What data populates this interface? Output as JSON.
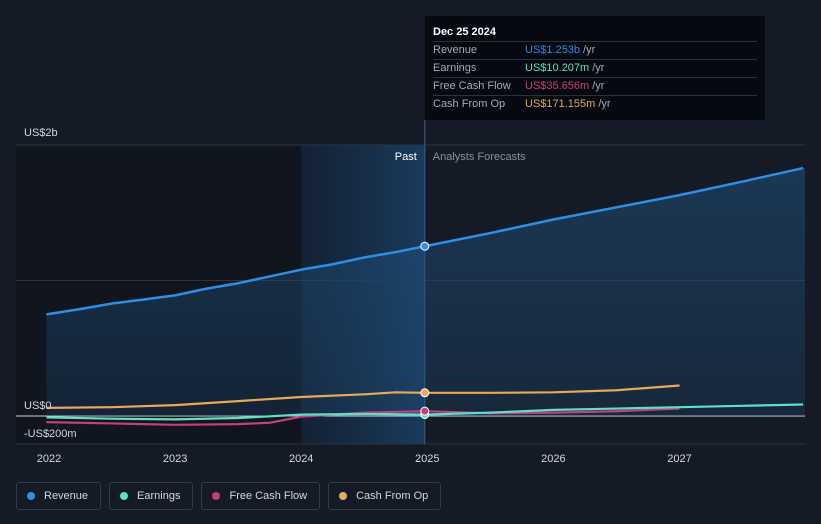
{
  "chart_data": {
    "type": "line",
    "y_axis_labels": [
      "US$2b",
      "US$0",
      "-US$200m"
    ],
    "x_tick_labels": [
      "2022",
      "2023",
      "2024",
      "2025",
      "2026",
      "2027"
    ],
    "ylim": [
      -200,
      2000
    ],
    "divider_label_past": "Past",
    "divider_label_forecast": "Analysts Forecasts",
    "divider_x": 2024.98,
    "highlight_start": 2024.0,
    "series": [
      {
        "name": "Revenue",
        "color": "#2d8fe6",
        "points": [
          [
            2021.98,
            750
          ],
          [
            2022.25,
            790
          ],
          [
            2022.5,
            830
          ],
          [
            2022.75,
            860
          ],
          [
            2023.0,
            890
          ],
          [
            2023.25,
            940
          ],
          [
            2023.5,
            980
          ],
          [
            2023.75,
            1030
          ],
          [
            2024.0,
            1080
          ],
          [
            2024.25,
            1120
          ],
          [
            2024.5,
            1170
          ],
          [
            2024.75,
            1210
          ],
          [
            2024.98,
            1253
          ]
        ],
        "forecast": [
          [
            2024.98,
            1253
          ],
          [
            2025.5,
            1350
          ],
          [
            2026.0,
            1450
          ],
          [
            2026.5,
            1540
          ],
          [
            2027.0,
            1630
          ],
          [
            2027.5,
            1730
          ],
          [
            2027.98,
            1830
          ]
        ]
      },
      {
        "name": "Earnings",
        "color": "#5ee0c8",
        "points": [
          [
            2021.98,
            -10
          ],
          [
            2022.5,
            -20
          ],
          [
            2023.0,
            -25
          ],
          [
            2023.5,
            -15
          ],
          [
            2024.0,
            10
          ],
          [
            2024.5,
            15
          ],
          [
            2024.98,
            10.2
          ]
        ],
        "forecast": [
          [
            2024.98,
            10.2
          ],
          [
            2025.5,
            25
          ],
          [
            2026.0,
            45
          ],
          [
            2026.5,
            55
          ],
          [
            2027.0,
            65
          ],
          [
            2027.5,
            75
          ],
          [
            2027.98,
            85
          ]
        ]
      },
      {
        "name": "Free Cash Flow",
        "color": "#c4407a",
        "points": [
          [
            2021.98,
            -45
          ],
          [
            2022.5,
            -55
          ],
          [
            2023.0,
            -65
          ],
          [
            2023.5,
            -60
          ],
          [
            2023.75,
            -50
          ],
          [
            2024.0,
            -5
          ],
          [
            2024.5,
            25
          ],
          [
            2024.98,
            35.7
          ]
        ],
        "forecast": [
          [
            2024.98,
            35.7
          ],
          [
            2025.5,
            20
          ],
          [
            2026.0,
            25
          ],
          [
            2026.5,
            35
          ],
          [
            2027.0,
            55
          ]
        ]
      },
      {
        "name": "Cash From Op",
        "color": "#e8a95a",
        "points": [
          [
            2021.98,
            60
          ],
          [
            2022.5,
            65
          ],
          [
            2023.0,
            80
          ],
          [
            2023.5,
            110
          ],
          [
            2024.0,
            140
          ],
          [
            2024.5,
            160
          ],
          [
            2024.75,
            175
          ],
          [
            2024.98,
            171.2
          ]
        ],
        "forecast": [
          [
            2024.98,
            171.2
          ],
          [
            2025.5,
            171
          ],
          [
            2026.0,
            175
          ],
          [
            2026.5,
            190
          ],
          [
            2027.0,
            225
          ]
        ]
      }
    ]
  },
  "tooltip": {
    "date": "Dec 25 2024",
    "rows": [
      {
        "label": "Revenue",
        "value": "US$1.253b",
        "unit": "/yr",
        "color": "#2d8fe6"
      },
      {
        "label": "Earnings",
        "value": "US$10.207m",
        "unit": "/yr",
        "color": "#5ee0c8"
      },
      {
        "label": "Free Cash Flow",
        "value": "US$35.656m",
        "unit": "/yr",
        "color": "#c4407a"
      },
      {
        "label": "Cash From Op",
        "value": "US$171.155m",
        "unit": "/yr",
        "color": "#e8a95a"
      }
    ]
  },
  "legend": [
    {
      "label": "Revenue",
      "color": "#2d8fe6"
    },
    {
      "label": "Earnings",
      "color": "#5ee0c8"
    },
    {
      "label": "Free Cash Flow",
      "color": "#c4407a"
    },
    {
      "label": "Cash From Op",
      "color": "#e8a95a"
    }
  ]
}
